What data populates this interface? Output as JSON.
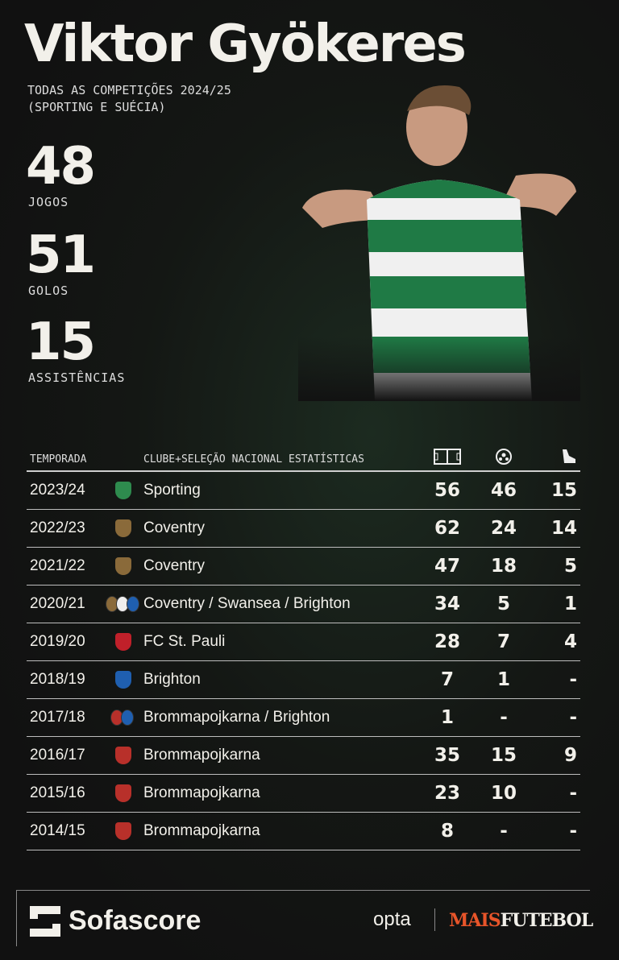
{
  "title": "Viktor Gyökeres",
  "subtitle": [
    "TODAS AS COMPETIÇÕES 2024/25",
    "(SPORTING E SUÉCIA)"
  ],
  "stats": [
    {
      "value": "48",
      "label": "JOGOS"
    },
    {
      "value": "51",
      "label": "GOLOS"
    },
    {
      "value": "15",
      "label": "ASSISTÊNCIAS"
    }
  ],
  "table": {
    "headers": {
      "season": "TEMPORADA",
      "club": "CLUBE+SELEÇÃO NACIONAL ESTATÍSTICAS",
      "icons": [
        "pitch-icon",
        "ball-icon",
        "boot-icon"
      ]
    },
    "rows": [
      {
        "season": "2023/24",
        "club": "Sporting",
        "apps": "56",
        "goals": "46",
        "assists": "15",
        "crests": [
          "#2e8b4e"
        ]
      },
      {
        "season": "2022/23",
        "club": "Coventry",
        "apps": "62",
        "goals": "24",
        "assists": "14",
        "crests": [
          "#8a6a3a"
        ]
      },
      {
        "season": "2021/22",
        "club": "Coventry",
        "apps": "47",
        "goals": "18",
        "assists": "5",
        "crests": [
          "#8a6a3a"
        ]
      },
      {
        "season": "2020/21",
        "club": "Coventry / Swansea / Brighton",
        "apps": "34",
        "goals": "5",
        "assists": "1",
        "crests": [
          "#8a6a3a",
          "#eeeeee",
          "#1f5fb0"
        ]
      },
      {
        "season": "2019/20",
        "club": "FC St. Pauli",
        "apps": "28",
        "goals": "7",
        "assists": "4",
        "crests": [
          "#c0202a"
        ]
      },
      {
        "season": "2018/19",
        "club": "Brighton",
        "apps": "7",
        "goals": "1",
        "assists": "-",
        "crests": [
          "#1f5fb0"
        ]
      },
      {
        "season": "2017/18",
        "club": "Brommapojkarna / Brighton",
        "apps": "1",
        "goals": "-",
        "assists": "-",
        "crests": [
          "#b8302a",
          "#1f5fb0"
        ]
      },
      {
        "season": "2016/17",
        "club": "Brommapojkarna",
        "apps": "35",
        "goals": "15",
        "assists": "9",
        "crests": [
          "#b8302a"
        ]
      },
      {
        "season": "2015/16",
        "club": "Brommapojkarna",
        "apps": "23",
        "goals": "10",
        "assists": "-",
        "crests": [
          "#b8302a"
        ]
      },
      {
        "season": "2014/15",
        "club": "Brommapojkarna",
        "apps": "8",
        "goals": "-",
        "assists": "-",
        "crests": [
          "#b8302a"
        ]
      }
    ]
  },
  "footer": {
    "sofascore": "Sofascore",
    "opta": "opta",
    "maisfutebol": [
      "MAIS",
      "FUTEBOL"
    ]
  },
  "colors": {
    "accent_orange": "#e8552a",
    "sporting_green": "#1f7a45"
  }
}
